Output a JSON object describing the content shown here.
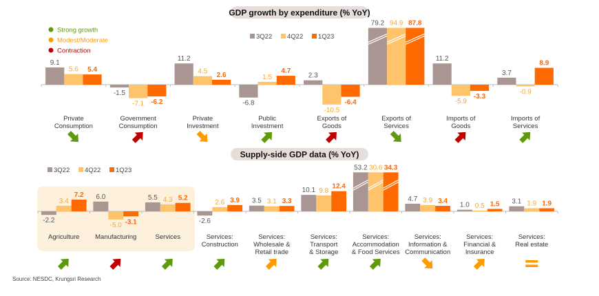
{
  "colors": {
    "3Q22": "#a99592",
    "4Q22": "#fec36b",
    "1Q23": "#ff6a00",
    "strong": "#5f9a0b",
    "modest": "#ff9a00",
    "contraction": "#c00000"
  },
  "indicator_legend": [
    {
      "label": "Strong growth",
      "status": "strong"
    },
    {
      "label": "Modest/Moderate",
      "status": "modest"
    },
    {
      "label": "Contraction",
      "status": "contraction"
    }
  ],
  "source": "Source: NESDC, Krungsri Research",
  "chart_data": [
    {
      "type": "bar",
      "title": "GDP growth by expenditure (% YoY)",
      "series": [
        {
          "name": "3Q22"
        },
        {
          "name": "4Q22"
        },
        {
          "name": "1Q23"
        }
      ],
      "categories": [
        {
          "label": [
            "Private",
            "Consumption"
          ],
          "values": [
            9.1,
            5.6,
            5.4
          ],
          "indicator": "strong",
          "arrow": "down-right"
        },
        {
          "label": [
            "Government",
            "Consumption"
          ],
          "values": [
            -1.5,
            -7.1,
            -6.2
          ],
          "indicator": "contraction",
          "arrow": "up-right"
        },
        {
          "label": [
            "Private",
            "Investment"
          ],
          "values": [
            11.2,
            4.5,
            2.6
          ],
          "indicator": "modest",
          "arrow": "down-right"
        },
        {
          "label": [
            "Public",
            "Investment"
          ],
          "values": [
            -6.8,
            1.5,
            4.7
          ],
          "indicator": "strong",
          "arrow": "up-right"
        },
        {
          "label": [
            "Exports of",
            "Goods"
          ],
          "values": [
            2.3,
            -10.5,
            -6.4
          ],
          "indicator": "contraction",
          "arrow": "up-right"
        },
        {
          "label": [
            "Exports of",
            "Services"
          ],
          "values": [
            79.2,
            94.9,
            87.8
          ],
          "indicator": "strong",
          "arrow": "down-right",
          "broken_axis": true
        },
        {
          "label": [
            "Imports of",
            "Goods"
          ],
          "values": [
            11.2,
            -5.9,
            -3.3
          ],
          "indicator": "contraction",
          "arrow": "up-right"
        },
        {
          "label": [
            "Imports of",
            "Services"
          ],
          "values": [
            3.7,
            -0.9,
            8.9
          ],
          "indicator": "strong",
          "arrow": "up-right"
        }
      ],
      "legend_placement": "top-center",
      "grid": false
    },
    {
      "type": "bar",
      "title": "Supply-side GDP data (% YoY)",
      "series": [
        {
          "name": "3Q22"
        },
        {
          "name": "4Q22"
        },
        {
          "name": "1Q23"
        }
      ],
      "categories": [
        {
          "label": [
            "Agriculture"
          ],
          "values": [
            -2.2,
            3.4,
            7.2
          ],
          "indicator": "strong",
          "arrow": "up-right",
          "highlighted": true
        },
        {
          "label": [
            "Manufacturing"
          ],
          "values": [
            6.0,
            -5.0,
            -3.1
          ],
          "indicator": "contraction",
          "arrow": "up-right",
          "highlighted": true
        },
        {
          "label": [
            "Services"
          ],
          "values": [
            5.5,
            4.3,
            5.2
          ],
          "indicator": "strong",
          "arrow": "up-right",
          "highlighted": true
        },
        {
          "label": [
            "Services:",
            "Construction"
          ],
          "values": [
            -2.6,
            2.6,
            3.9
          ],
          "indicator": "strong",
          "arrow": "up-right"
        },
        {
          "label": [
            "Services:",
            "Wholesale &",
            "Retail trade"
          ],
          "values": [
            3.5,
            3.1,
            3.3
          ],
          "indicator": "modest",
          "arrow": "up-right"
        },
        {
          "label": [
            "Services:",
            "Transport",
            "& Storage"
          ],
          "values": [
            10.1,
            9.8,
            12.4
          ],
          "indicator": "strong",
          "arrow": "up-right"
        },
        {
          "label": [
            "Services:",
            "Accommodation",
            "& Food Services"
          ],
          "values": [
            53.2,
            30.6,
            34.3
          ],
          "indicator": "strong",
          "arrow": "up-right",
          "broken_axis": true
        },
        {
          "label": [
            "Services:",
            "Information &",
            "Communication"
          ],
          "values": [
            4.7,
            3.9,
            3.4
          ],
          "indicator": "modest",
          "arrow": "down-right"
        },
        {
          "label": [
            "Services:",
            "Financial &",
            "Insurance"
          ],
          "values": [
            1.0,
            0.5,
            1.5
          ],
          "indicator": "modest",
          "arrow": "up-right"
        },
        {
          "label": [
            "Services:",
            "Real estate"
          ],
          "values": [
            3.1,
            1.9,
            1.9
          ],
          "indicator": "modest",
          "arrow": "equal"
        }
      ],
      "legend_placement": "top-left",
      "grid": false
    }
  ]
}
